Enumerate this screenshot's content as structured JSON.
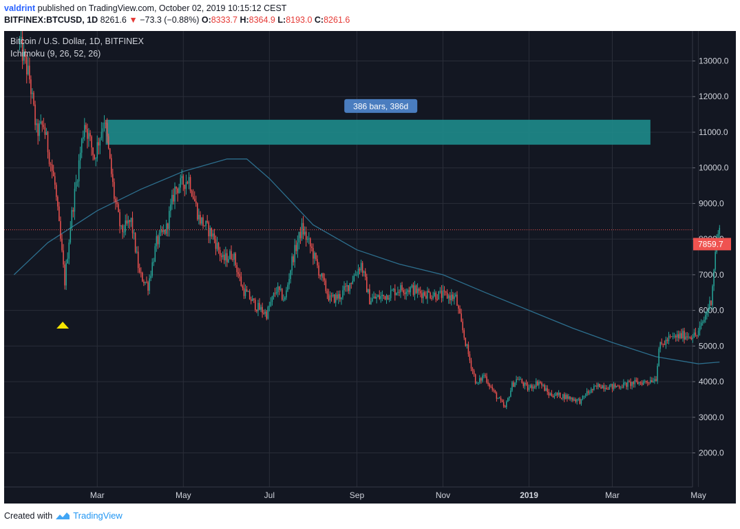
{
  "header": {
    "user": "valdrint",
    "published": "published on TradingView.com, October 02, 2019 10:15:12 CEST",
    "symbol": "BITFINEX:BTCUSD, 1D",
    "last": "8261.6",
    "arrow": "▼",
    "change": "−73.3 (−0.88%)",
    "o_label": "O:",
    "o_value": "8333.7",
    "h_label": "H:",
    "h_value": "8364.9",
    "l_label": "L:",
    "l_value": "8193.0",
    "c_label": "C:",
    "c_value": "8261.6"
  },
  "legend": {
    "title": "Bitcoin / U.S. Dollar, 1D, BITFINEX",
    "indicator": "Ichimoku (9, 26, 52, 26)"
  },
  "footer": {
    "created_with": "Created with",
    "brand": "TradingView",
    "logo_icon": "tradingview-logo-icon"
  },
  "colors": {
    "background": "#131722",
    "up": "#26a69a",
    "down": "#ef5350",
    "zone": "#1e8b8b",
    "ma_line": "#2d6f8e",
    "grid": "#2a2e39",
    "axis_text": "#d1d4dc",
    "marker": "#f5e400"
  },
  "chart_data": {
    "type": "candlestick",
    "title": "Bitcoin / U.S. Dollar, 1D, BITFINEX",
    "ylim": [
      1000,
      14000
    ],
    "y_ticks": [
      "2000.0",
      "3000.0",
      "4000.0",
      "5000.0",
      "6000.0",
      "7000.0",
      "8000.0",
      "9000.0",
      "10000.0",
      "11000.0",
      "12000.0",
      "13000.0"
    ],
    "x_ticks": [
      "Mar",
      "May",
      "Jul",
      "Sep",
      "Nov",
      "2019",
      "Mar",
      "May"
    ],
    "price_path": [
      [
        "2018-01-05",
        13500
      ],
      [
        "2018-01-12",
        12500
      ],
      [
        "2018-01-17",
        11000
      ],
      [
        "2018-01-22",
        11200
      ],
      [
        "2018-01-30",
        9500
      ],
      [
        "2018-02-06",
        6800
      ],
      [
        "2018-02-10",
        8400
      ],
      [
        "2018-02-20",
        11300
      ],
      [
        "2018-02-27",
        10300
      ],
      [
        "2018-03-06",
        11400
      ],
      [
        "2018-03-13",
        9200
      ],
      [
        "2018-03-18",
        8200
      ],
      [
        "2018-03-25",
        8500
      ],
      [
        "2018-03-31",
        7000
      ],
      [
        "2018-04-06",
        6700
      ],
      [
        "2018-04-12",
        7900
      ],
      [
        "2018-04-19",
        8300
      ],
      [
        "2018-04-25",
        9400
      ],
      [
        "2018-05-05",
        9700
      ],
      [
        "2018-05-12",
        8600
      ],
      [
        "2018-05-22",
        8100
      ],
      [
        "2018-05-29",
        7400
      ],
      [
        "2018-06-05",
        7600
      ],
      [
        "2018-06-12",
        6600
      ],
      [
        "2018-06-22",
        6100
      ],
      [
        "2018-06-29",
        5900
      ],
      [
        "2018-07-06",
        6600
      ],
      [
        "2018-07-12",
        6300
      ],
      [
        "2018-07-17",
        7400
      ],
      [
        "2018-07-24",
        8300
      ],
      [
        "2018-07-31",
        7700
      ],
      [
        "2018-08-06",
        7000
      ],
      [
        "2018-08-13",
        6300
      ],
      [
        "2018-08-20",
        6400
      ],
      [
        "2018-08-26",
        6700
      ],
      [
        "2018-09-04",
        7300
      ],
      [
        "2018-09-10",
        6300
      ],
      [
        "2018-09-20",
        6400
      ],
      [
        "2018-10-01",
        6600
      ],
      [
        "2018-10-10",
        6600
      ],
      [
        "2018-10-15",
        6500
      ],
      [
        "2018-10-25",
        6450
      ],
      [
        "2018-11-05",
        6400
      ],
      [
        "2018-11-10",
        6350
      ],
      [
        "2018-11-14",
        5600
      ],
      [
        "2018-11-20",
        4600
      ],
      [
        "2018-11-25",
        3900
      ],
      [
        "2018-11-30",
        4200
      ],
      [
        "2018-12-07",
        3700
      ],
      [
        "2018-12-15",
        3250
      ],
      [
        "2018-12-20",
        3900
      ],
      [
        "2018-12-24",
        4100
      ],
      [
        "2018-12-31",
        3800
      ],
      [
        "2019-01-08",
        4000
      ],
      [
        "2019-01-15",
        3650
      ],
      [
        "2019-01-25",
        3600
      ],
      [
        "2019-02-07",
        3450
      ],
      [
        "2019-02-10",
        3650
      ],
      [
        "2019-02-20",
        3900
      ],
      [
        "2019-03-01",
        3850
      ],
      [
        "2019-03-15",
        3950
      ],
      [
        "2019-03-25",
        4000
      ],
      [
        "2019-04-01",
        4100
      ],
      [
        "2019-04-03",
        4950
      ],
      [
        "2019-04-10",
        5200
      ],
      [
        "2019-04-20",
        5300
      ],
      [
        "2019-04-30",
        5300
      ],
      [
        "2019-05-05",
        5750
      ],
      [
        "2019-05-10",
        6300
      ],
      [
        "2019-05-12",
        7200
      ],
      [
        "2019-05-14",
        8000
      ],
      [
        "2019-05-16",
        8200
      ]
    ],
    "moving_average": [
      [
        "2018-01-01",
        7000
      ],
      [
        "2018-01-25",
        7900
      ],
      [
        "2018-03-01",
        8800
      ],
      [
        "2018-04-01",
        9400
      ],
      [
        "2018-05-01",
        9900
      ],
      [
        "2018-06-01",
        10250
      ],
      [
        "2018-06-15",
        10250
      ],
      [
        "2018-07-01",
        9700
      ],
      [
        "2018-08-01",
        8400
      ],
      [
        "2018-09-01",
        7700
      ],
      [
        "2018-10-01",
        7300
      ],
      [
        "2018-11-01",
        7000
      ],
      [
        "2018-12-01",
        6500
      ],
      [
        "2019-01-01",
        6000
      ],
      [
        "2019-02-01",
        5500
      ],
      [
        "2019-03-01",
        5100
      ],
      [
        "2019-04-01",
        4700
      ],
      [
        "2019-05-01",
        4500
      ],
      [
        "2019-05-16",
        4550
      ]
    ],
    "resistance_zone": {
      "start": "2018-03-07",
      "end": "2019-03-28",
      "low": 10650,
      "high": 11350,
      "label": "386 bars, 386d"
    },
    "current_price_line": 8261.6,
    "price_label": "7859.7",
    "marker": {
      "date": "2018-02-06",
      "type": "triangle-up"
    }
  }
}
